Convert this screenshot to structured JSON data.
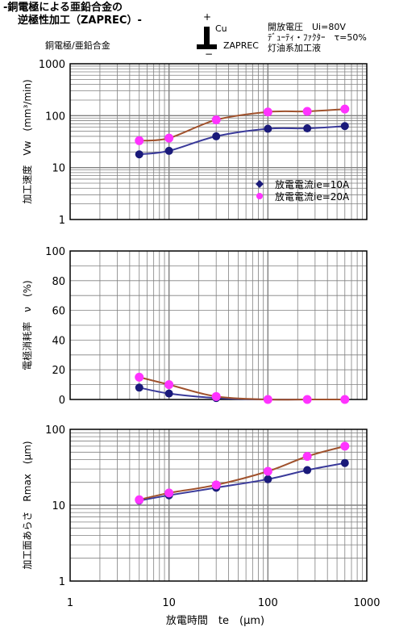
{
  "header": {
    "title_line1": "-銅電極による亜鉛合金の",
    "title_line2": "逆極性加工（ZAPREC）-",
    "subtitle": "銅電極/亜鉛合金",
    "polarity_plus": "+",
    "polarity_minus": "−",
    "electrode_label": "Cu",
    "process_label": "ZAPREC",
    "condition_voltage": "開放電圧　Ui=80V",
    "condition_duty": "ﾃﾞｭｰﾃｨ・ﾌｧｸﾀｰ　τ=50%",
    "condition_fluid": "灯油系加工液"
  },
  "colors": {
    "series1_marker": "#1a1a7a",
    "series1_curve": "#3a3a9a",
    "series2_marker": "#ff33ff",
    "series2_curve": "#a0522d",
    "grid": "#808080",
    "plot_bg": "#ffffff"
  },
  "chart_data": [
    {
      "type": "scatter",
      "xscale": "log",
      "yscale": "log",
      "xlim": [
        1,
        1000
      ],
      "ylim": [
        1,
        1000
      ],
      "ylabel": "加工速度　Vw　(mm³/min)",
      "ytick_labels": [
        "1",
        "10",
        "100",
        "1000"
      ],
      "legend_position": "lower-right",
      "series": [
        {
          "name": "放電電流ie=10A",
          "x": [
            5,
            10,
            30,
            100,
            250,
            600
          ],
          "y": [
            18,
            21,
            40,
            56,
            57,
            63
          ]
        },
        {
          "name": "放電電流ie=20A",
          "x": [
            5,
            10,
            30,
            100,
            250,
            600
          ],
          "y": [
            33,
            37,
            83,
            118,
            121,
            134
          ]
        }
      ]
    },
    {
      "type": "scatter",
      "xscale": "log",
      "yscale": "linear",
      "xlim": [
        1,
        1000
      ],
      "ylim": [
        0,
        100
      ],
      "ylabel": "電極消耗率　ν　(%)",
      "ytick_labels": [
        "0",
        "20",
        "40",
        "60",
        "80",
        "100"
      ],
      "series": [
        {
          "name": "放電電流ie=10A",
          "x": [
            5,
            10,
            30,
            100,
            250,
            600
          ],
          "y": [
            8,
            4,
            1,
            0,
            0,
            0
          ]
        },
        {
          "name": "放電電流ie=20A",
          "x": [
            5,
            10,
            30,
            100,
            250,
            600
          ],
          "y": [
            15,
            10,
            2,
            0,
            0,
            0
          ]
        }
      ]
    },
    {
      "type": "scatter",
      "xscale": "log",
      "yscale": "log",
      "xlim": [
        1,
        1000
      ],
      "ylim": [
        1,
        100
      ],
      "ylabel": "加工面あらさ　Rmax　(μm)",
      "xlabel": "放電時間　te　(μm)",
      "xtick_labels": [
        "1",
        "10",
        "100",
        "1000"
      ],
      "ytick_labels": [
        "1",
        "10",
        "100"
      ],
      "series": [
        {
          "name": "放電電流ie=10A",
          "x": [
            5,
            10,
            30,
            100,
            250,
            600
          ],
          "y": [
            11.5,
            13.5,
            17,
            22,
            29,
            36
          ]
        },
        {
          "name": "放電電流ie=20A",
          "x": [
            5,
            10,
            30,
            100,
            250,
            600
          ],
          "y": [
            11.8,
            14.5,
            18.5,
            28,
            44,
            60
          ]
        }
      ]
    }
  ]
}
